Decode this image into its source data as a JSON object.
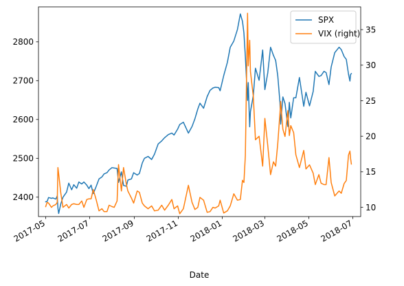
{
  "chart_data": {
    "type": "line",
    "title": "",
    "xlabel": "Date",
    "ylabel_left": "",
    "ylabel_right": "",
    "x_ticks": [
      "2017-05",
      "2017-07",
      "2017-09",
      "2017-11",
      "2018-01",
      "2018-03",
      "2018-05",
      "2018-07"
    ],
    "xlim": [
      "2017-04-21",
      "2018-07-12"
    ],
    "y_left": {
      "lim": [
        2350,
        2890
      ],
      "ticks": [
        2400,
        2500,
        2600,
        2700,
        2800
      ]
    },
    "y_right": {
      "lim": [
        8.7,
        38.2
      ],
      "ticks": [
        10,
        15,
        20,
        25,
        30,
        35
      ]
    },
    "grid": false,
    "legend_position": "top-right",
    "series": [
      {
        "name": "SPX",
        "axis": "left",
        "color": "#1f77b4",
        "points": [
          [
            "2017-05-01",
            2388
          ],
          [
            "2017-05-03",
            2389
          ],
          [
            "2017-05-05",
            2399
          ],
          [
            "2017-05-09",
            2397
          ],
          [
            "2017-05-11",
            2398
          ],
          [
            "2017-05-15",
            2395
          ],
          [
            "2017-05-17",
            2403
          ],
          [
            "2017-05-18",
            2372
          ],
          [
            "2017-05-19",
            2358
          ],
          [
            "2017-05-22",
            2383
          ],
          [
            "2017-05-25",
            2400
          ],
          [
            "2017-05-30",
            2413
          ],
          [
            "2017-06-02",
            2436
          ],
          [
            "2017-06-06",
            2419
          ],
          [
            "2017-06-09",
            2432
          ],
          [
            "2017-06-13",
            2423
          ],
          [
            "2017-06-16",
            2439
          ],
          [
            "2017-06-20",
            2434
          ],
          [
            "2017-06-23",
            2439
          ],
          [
            "2017-06-27",
            2431
          ],
          [
            "2017-06-30",
            2422
          ],
          [
            "2017-07-03",
            2431
          ],
          [
            "2017-07-06",
            2409
          ],
          [
            "2017-07-10",
            2427
          ],
          [
            "2017-07-14",
            2447
          ],
          [
            "2017-07-18",
            2452
          ],
          [
            "2017-07-21",
            2460
          ],
          [
            "2017-07-25",
            2463
          ],
          [
            "2017-07-28",
            2470
          ],
          [
            "2017-08-01",
            2476
          ],
          [
            "2017-08-04",
            2475
          ],
          [
            "2017-08-08",
            2474
          ],
          [
            "2017-08-10",
            2438
          ],
          [
            "2017-08-14",
            2465
          ],
          [
            "2017-08-17",
            2430
          ],
          [
            "2017-08-21",
            2428
          ],
          [
            "2017-08-23",
            2444
          ],
          [
            "2017-08-28",
            2447
          ],
          [
            "2017-08-31",
            2463
          ],
          [
            "2017-09-05",
            2457
          ],
          [
            "2017-09-08",
            2461
          ],
          [
            "2017-09-12",
            2488
          ],
          [
            "2017-09-15",
            2500
          ],
          [
            "2017-09-20",
            2505
          ],
          [
            "2017-09-25",
            2497
          ],
          [
            "2017-09-29",
            2511
          ],
          [
            "2017-10-04",
            2537
          ],
          [
            "2017-10-09",
            2545
          ],
          [
            "2017-10-13",
            2553
          ],
          [
            "2017-10-18",
            2561
          ],
          [
            "2017-10-23",
            2565
          ],
          [
            "2017-10-26",
            2560
          ],
          [
            "2017-10-31",
            2575
          ],
          [
            "2017-11-03",
            2587
          ],
          [
            "2017-11-08",
            2593
          ],
          [
            "2017-11-15",
            2565
          ],
          [
            "2017-11-20",
            2582
          ],
          [
            "2017-11-24",
            2602
          ],
          [
            "2017-11-28",
            2627
          ],
          [
            "2017-12-01",
            2642
          ],
          [
            "2017-12-06",
            2629
          ],
          [
            "2017-12-11",
            2659
          ],
          [
            "2017-12-15",
            2675
          ],
          [
            "2017-12-19",
            2681
          ],
          [
            "2017-12-22",
            2683
          ],
          [
            "2017-12-27",
            2682
          ],
          [
            "2017-12-29",
            2674
          ],
          [
            "2018-01-03",
            2713
          ],
          [
            "2018-01-08",
            2747
          ],
          [
            "2018-01-12",
            2786
          ],
          [
            "2018-01-17",
            2802
          ],
          [
            "2018-01-22",
            2832
          ],
          [
            "2018-01-26",
            2872
          ],
          [
            "2018-01-29",
            2853
          ],
          [
            "2018-01-31",
            2823
          ],
          [
            "2018-02-02",
            2762
          ],
          [
            "2018-02-05",
            2649
          ],
          [
            "2018-02-06",
            2695
          ],
          [
            "2018-02-08",
            2581
          ],
          [
            "2018-02-09",
            2620
          ],
          [
            "2018-02-13",
            2662
          ],
          [
            "2018-02-16",
            2732
          ],
          [
            "2018-02-21",
            2701
          ],
          [
            "2018-02-26",
            2779
          ],
          [
            "2018-03-01",
            2677
          ],
          [
            "2018-03-05",
            2720
          ],
          [
            "2018-03-09",
            2786
          ],
          [
            "2018-03-13",
            2765
          ],
          [
            "2018-03-16",
            2752
          ],
          [
            "2018-03-19",
            2712
          ],
          [
            "2018-03-22",
            2643
          ],
          [
            "2018-03-23",
            2588
          ],
          [
            "2018-03-26",
            2658
          ],
          [
            "2018-03-29",
            2641
          ],
          [
            "2018-04-02",
            2582
          ],
          [
            "2018-04-04",
            2644
          ],
          [
            "2018-04-06",
            2604
          ],
          [
            "2018-04-10",
            2656
          ],
          [
            "2018-04-13",
            2656
          ],
          [
            "2018-04-18",
            2708
          ],
          [
            "2018-04-24",
            2634
          ],
          [
            "2018-04-27",
            2670
          ],
          [
            "2018-05-02",
            2635
          ],
          [
            "2018-05-07",
            2672
          ],
          [
            "2018-05-10",
            2724
          ],
          [
            "2018-05-15",
            2711
          ],
          [
            "2018-05-18",
            2713
          ],
          [
            "2018-05-22",
            2724
          ],
          [
            "2018-05-25",
            2721
          ],
          [
            "2018-05-29",
            2690
          ],
          [
            "2018-06-01",
            2735
          ],
          [
            "2018-06-06",
            2772
          ],
          [
            "2018-06-12",
            2786
          ],
          [
            "2018-06-15",
            2780
          ],
          [
            "2018-06-19",
            2762
          ],
          [
            "2018-06-22",
            2755
          ],
          [
            "2018-06-25",
            2717
          ],
          [
            "2018-06-27",
            2699
          ],
          [
            "2018-06-28",
            2716
          ],
          [
            "2018-06-29",
            2718
          ]
        ]
      },
      {
        "name": "VIX (right)",
        "axis": "right",
        "color": "#ff7f0e",
        "points": [
          [
            "2017-05-01",
            10.1
          ],
          [
            "2017-05-03",
            10.7
          ],
          [
            "2017-05-05",
            10.6
          ],
          [
            "2017-05-09",
            10.0
          ],
          [
            "2017-05-11",
            10.2
          ],
          [
            "2017-05-15",
            10.4
          ],
          [
            "2017-05-17",
            10.7
          ],
          [
            "2017-05-18",
            15.6
          ],
          [
            "2017-05-19",
            14.7
          ],
          [
            "2017-05-22",
            12.0
          ],
          [
            "2017-05-25",
            10.0
          ],
          [
            "2017-05-30",
            10.4
          ],
          [
            "2017-06-02",
            9.9
          ],
          [
            "2017-06-06",
            10.4
          ],
          [
            "2017-06-09",
            10.5
          ],
          [
            "2017-06-13",
            10.4
          ],
          [
            "2017-06-16",
            10.4
          ],
          [
            "2017-06-20",
            10.9
          ],
          [
            "2017-06-23",
            10.0
          ],
          [
            "2017-06-27",
            11.1
          ],
          [
            "2017-06-30",
            11.2
          ],
          [
            "2017-07-03",
            11.2
          ],
          [
            "2017-07-06",
            12.5
          ],
          [
            "2017-07-10",
            11.1
          ],
          [
            "2017-07-14",
            9.5
          ],
          [
            "2017-07-18",
            9.8
          ],
          [
            "2017-07-21",
            9.4
          ],
          [
            "2017-07-25",
            9.4
          ],
          [
            "2017-07-28",
            10.3
          ],
          [
            "2017-08-01",
            10.1
          ],
          [
            "2017-08-04",
            10.0
          ],
          [
            "2017-08-08",
            10.9
          ],
          [
            "2017-08-10",
            16.0
          ],
          [
            "2017-08-14",
            12.3
          ],
          [
            "2017-08-17",
            15.6
          ],
          [
            "2017-08-21",
            13.2
          ],
          [
            "2017-08-23",
            12.3
          ],
          [
            "2017-08-28",
            11.3
          ],
          [
            "2017-08-31",
            10.6
          ],
          [
            "2017-09-05",
            12.3
          ],
          [
            "2017-09-08",
            12.1
          ],
          [
            "2017-09-12",
            10.6
          ],
          [
            "2017-09-15",
            10.2
          ],
          [
            "2017-09-20",
            9.8
          ],
          [
            "2017-09-25",
            10.2
          ],
          [
            "2017-09-29",
            9.5
          ],
          [
            "2017-10-04",
            9.6
          ],
          [
            "2017-10-09",
            10.3
          ],
          [
            "2017-10-13",
            9.6
          ],
          [
            "2017-10-18",
            10.3
          ],
          [
            "2017-10-23",
            11.1
          ],
          [
            "2017-10-26",
            9.8
          ],
          [
            "2017-10-31",
            10.2
          ],
          [
            "2017-11-03",
            9.1
          ],
          [
            "2017-11-08",
            9.8
          ],
          [
            "2017-11-15",
            13.1
          ],
          [
            "2017-11-20",
            10.7
          ],
          [
            "2017-11-24",
            9.7
          ],
          [
            "2017-11-28",
            10.0
          ],
          [
            "2017-12-01",
            11.4
          ],
          [
            "2017-12-06",
            11.0
          ],
          [
            "2017-12-11",
            9.3
          ],
          [
            "2017-12-15",
            9.4
          ],
          [
            "2017-12-19",
            10.0
          ],
          [
            "2017-12-22",
            9.9
          ],
          [
            "2017-12-27",
            10.2
          ],
          [
            "2017-12-29",
            11.0
          ],
          [
            "2018-01-03",
            9.2
          ],
          [
            "2018-01-08",
            9.5
          ],
          [
            "2018-01-12",
            10.2
          ],
          [
            "2018-01-17",
            11.9
          ],
          [
            "2018-01-22",
            11.0
          ],
          [
            "2018-01-26",
            11.1
          ],
          [
            "2018-01-29",
            13.8
          ],
          [
            "2018-01-31",
            13.5
          ],
          [
            "2018-02-02",
            17.3
          ],
          [
            "2018-02-05",
            37.3
          ],
          [
            "2018-02-06",
            29.9
          ],
          [
            "2018-02-08",
            33.5
          ],
          [
            "2018-02-09",
            29.1
          ],
          [
            "2018-02-13",
            25.6
          ],
          [
            "2018-02-16",
            19.5
          ],
          [
            "2018-02-21",
            20.0
          ],
          [
            "2018-02-26",
            15.8
          ],
          [
            "2018-03-01",
            22.5
          ],
          [
            "2018-03-05",
            18.7
          ],
          [
            "2018-03-09",
            14.6
          ],
          [
            "2018-03-13",
            16.4
          ],
          [
            "2018-03-16",
            15.8
          ],
          [
            "2018-03-19",
            19.0
          ],
          [
            "2018-03-22",
            23.3
          ],
          [
            "2018-03-23",
            24.9
          ],
          [
            "2018-03-26",
            21.0
          ],
          [
            "2018-03-29",
            19.97
          ],
          [
            "2018-04-02",
            23.6
          ],
          [
            "2018-04-04",
            20.1
          ],
          [
            "2018-04-06",
            21.5
          ],
          [
            "2018-04-10",
            20.5
          ],
          [
            "2018-04-13",
            17.4
          ],
          [
            "2018-04-18",
            15.6
          ],
          [
            "2018-04-24",
            18.0
          ],
          [
            "2018-04-27",
            15.4
          ],
          [
            "2018-05-02",
            15.97
          ],
          [
            "2018-05-07",
            14.8
          ],
          [
            "2018-05-10",
            13.2
          ],
          [
            "2018-05-15",
            14.6
          ],
          [
            "2018-05-18",
            13.4
          ],
          [
            "2018-05-22",
            13.2
          ],
          [
            "2018-05-25",
            13.2
          ],
          [
            "2018-05-29",
            17.0
          ],
          [
            "2018-06-01",
            13.5
          ],
          [
            "2018-06-06",
            11.6
          ],
          [
            "2018-06-12",
            12.3
          ],
          [
            "2018-06-15",
            11.98
          ],
          [
            "2018-06-19",
            13.35
          ],
          [
            "2018-06-22",
            13.77
          ],
          [
            "2018-06-25",
            17.33
          ],
          [
            "2018-06-27",
            17.91
          ],
          [
            "2018-06-28",
            16.85
          ],
          [
            "2018-06-29",
            16.09
          ]
        ]
      }
    ]
  }
}
